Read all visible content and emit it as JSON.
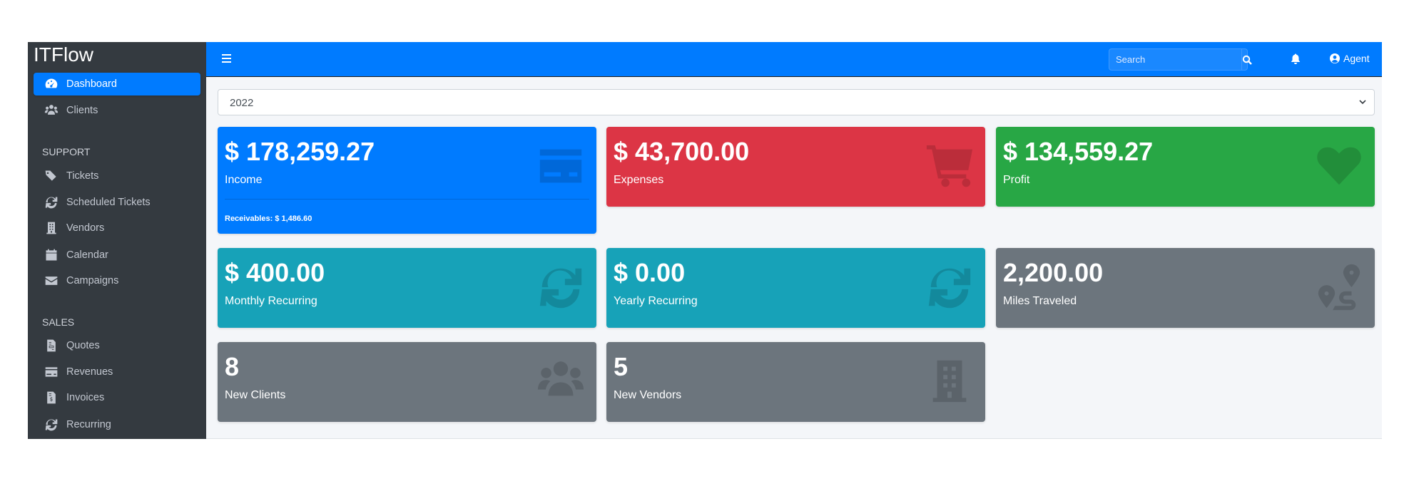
{
  "sidebar": {
    "brand": "ITFlow",
    "items": [
      {
        "label": "Dashboard",
        "icon": "tachometer-icon",
        "active": true
      },
      {
        "label": "Clients",
        "icon": "users-icon"
      },
      {
        "header": "SUPPORT"
      },
      {
        "label": "Tickets",
        "icon": "tags-icon"
      },
      {
        "label": "Scheduled Tickets",
        "icon": "sync-icon"
      },
      {
        "label": "Vendors",
        "icon": "building-icon"
      },
      {
        "label": "Calendar",
        "icon": "calendar-icon"
      },
      {
        "label": "Campaigns",
        "icon": "envelope-icon"
      },
      {
        "header": "SALES"
      },
      {
        "label": "Quotes",
        "icon": "file-icon"
      },
      {
        "label": "Revenues",
        "icon": "credit-card-icon"
      },
      {
        "label": "Invoices",
        "icon": "file-invoice-dollar-icon"
      },
      {
        "label": "Recurring",
        "icon": "sync-icon"
      }
    ]
  },
  "navbar": {
    "search_placeholder": "Search",
    "user": "Agent"
  },
  "year_select": {
    "value": "2022"
  },
  "cards": [
    {
      "value": "$ 178,259.27",
      "label": "Income",
      "icon": "credit-card-icon",
      "color": "#007bff",
      "footer": "Receivables: $ 1,486.60"
    },
    {
      "value": "$ 43,700.00",
      "label": "Expenses",
      "icon": "shopping-cart-icon",
      "color": "#dc3545"
    },
    {
      "value": "$ 134,559.27",
      "label": "Profit",
      "icon": "heart-icon",
      "color": "#28a745"
    },
    {
      "value": "$ 400.00",
      "label": "Monthly Recurring",
      "icon": "sync-icon",
      "color": "#17a2b8"
    },
    {
      "value": "$ 0.00",
      "label": "Yearly Recurring",
      "icon": "sync-icon",
      "color": "#17a2b8"
    },
    {
      "value": "2,200.00",
      "label": "Miles Traveled",
      "icon": "route-icon",
      "color": "#6c757d"
    },
    {
      "value": "8",
      "label": "New Clients",
      "icon": "users-icon",
      "color": "#6c757d"
    },
    {
      "value": "5",
      "label": "New Vendors",
      "icon": "building-icon",
      "color": "#6c757d"
    }
  ]
}
